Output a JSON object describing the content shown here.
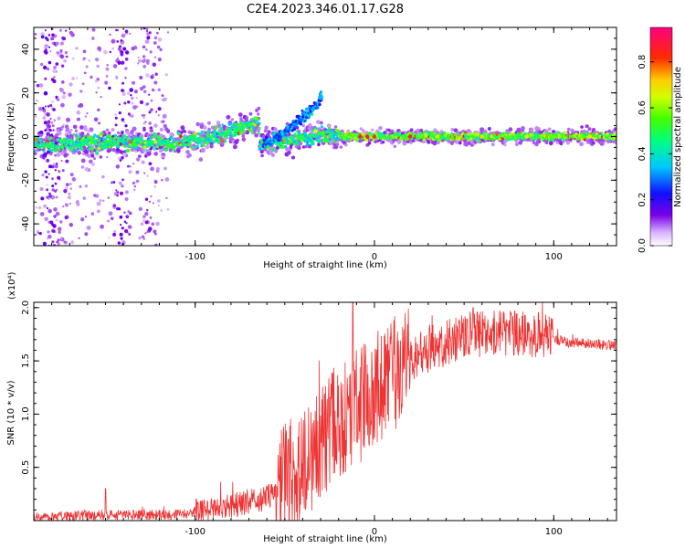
{
  "title": "C2E4.2023.346.01.17.G28",
  "chart_data": [
    {
      "type": "heatmap",
      "xlabel": "Height of straight line (km)",
      "ylabel": "Frequency (Hz)",
      "xlim": [
        -190,
        135
      ],
      "ylim": [
        -50,
        50
      ],
      "x_ticks": [
        -100,
        0,
        100
      ],
      "y_ticks": [
        -40,
        -20,
        0,
        20,
        40
      ],
      "tick_labels_x": [
        "-100",
        "0",
        "100"
      ],
      "tick_labels_y": [
        "-40",
        "-20",
        "0",
        "20",
        "40"
      ],
      "colorbar": {
        "label": "Normalized spectral amplitude",
        "range": [
          0,
          0.95
        ],
        "ticks": [
          "0.0",
          "0.2",
          "0.4",
          "0.6",
          "0.8"
        ],
        "tick_values": [
          0.0,
          0.2,
          0.4,
          0.6,
          0.8
        ],
        "colormap": "rainbow (white-violet-blue-cyan-green-yellow-red-magenta)"
      },
      "ridge": [
        {
          "x": -190,
          "f": -3.5
        },
        {
          "x": -150,
          "f": -3.0
        },
        {
          "x": -110,
          "f": -2.5
        },
        {
          "x": -90,
          "f": 0.0
        },
        {
          "x": -70,
          "f": 5.0
        },
        {
          "x": -65,
          "f": 7.0
        },
        {
          "x": -64,
          "f": -3.0
        },
        {
          "x": -50,
          "f": -2.0
        },
        {
          "x": -30,
          "f": 1.0
        },
        {
          "x": -20,
          "f": 0.0
        },
        {
          "x": 0,
          "f": 0.0
        },
        {
          "x": 135,
          "f": 0.0
        }
      ],
      "secondary_branch": [
        {
          "x": -62,
          "f": -4.0
        },
        {
          "x": -50,
          "f": 2.0
        },
        {
          "x": -40,
          "f": 9.0
        },
        {
          "x": -35,
          "f": 12.0
        },
        {
          "x": -30,
          "f": 18.0
        }
      ]
    },
    {
      "type": "line",
      "xlabel": "Height of straight line (km)",
      "ylabel": "SNR (10 * v/v)",
      "y_multiplier": "(x10⁴)",
      "xlim": [
        -190,
        135
      ],
      "ylim": [
        0,
        2.05
      ],
      "x_ticks": [
        -100,
        0,
        100
      ],
      "y_ticks": [
        0.5,
        1.0,
        1.5,
        2.0
      ],
      "tick_labels_x": [
        "-100",
        "0",
        "100"
      ],
      "tick_labels_y": [
        "0.5",
        "1.0",
        "1.5",
        "2.0"
      ],
      "color": "#ee3333",
      "envelope": [
        {
          "x": -190,
          "y": 0.03
        },
        {
          "x": -150,
          "y": 0.05
        },
        {
          "x": -110,
          "y": 0.05
        },
        {
          "x": -90,
          "y": 0.1
        },
        {
          "x": -60,
          "y": 0.2
        },
        {
          "x": -40,
          "y": 0.45
        },
        {
          "x": -25,
          "y": 0.8
        },
        {
          "x": -10,
          "y": 1.0
        },
        {
          "x": 0,
          "y": 1.15
        },
        {
          "x": 15,
          "y": 1.4
        },
        {
          "x": 30,
          "y": 1.58
        },
        {
          "x": 50,
          "y": 1.72
        },
        {
          "x": 70,
          "y": 1.74
        },
        {
          "x": 90,
          "y": 1.72
        },
        {
          "x": 110,
          "y": 1.67
        },
        {
          "x": 135,
          "y": 1.64
        }
      ],
      "peaks": [
        {
          "x": -150,
          "y": 0.3
        },
        {
          "x": -12,
          "y": 2.05
        },
        {
          "x": 55,
          "y": 2.0
        }
      ]
    }
  ]
}
